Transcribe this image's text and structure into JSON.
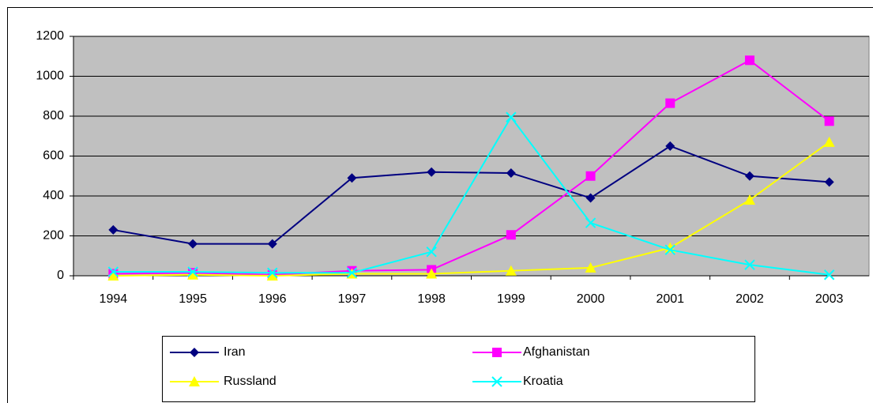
{
  "chart_data": {
    "type": "line",
    "categories": [
      "1994",
      "1995",
      "1996",
      "1997",
      "1998",
      "1999",
      "2000",
      "2001",
      "2002",
      "2003"
    ],
    "series": [
      {
        "name": "Iran",
        "color": "#000080",
        "marker": "diamond",
        "values": [
          230,
          160,
          160,
          490,
          520,
          515,
          390,
          650,
          500,
          470
        ]
      },
      {
        "name": "Afghanistan",
        "color": "#ff00ff",
        "marker": "square",
        "values": [
          10,
          15,
          5,
          25,
          30,
          205,
          500,
          865,
          1080,
          775
        ]
      },
      {
        "name": "Russland",
        "color": "#ffff00",
        "marker": "triangle",
        "values": [
          0,
          5,
          0,
          10,
          10,
          25,
          40,
          140,
          380,
          670
        ]
      },
      {
        "name": "Kroatia",
        "color": "#00ffff",
        "marker": "x",
        "values": [
          20,
          20,
          15,
          15,
          120,
          795,
          265,
          130,
          55,
          5
        ]
      }
    ],
    "ylim": [
      0,
      1200
    ],
    "yticks": [
      0,
      200,
      400,
      600,
      800,
      1000,
      1200
    ],
    "grid": true,
    "legend": "bottom"
  }
}
